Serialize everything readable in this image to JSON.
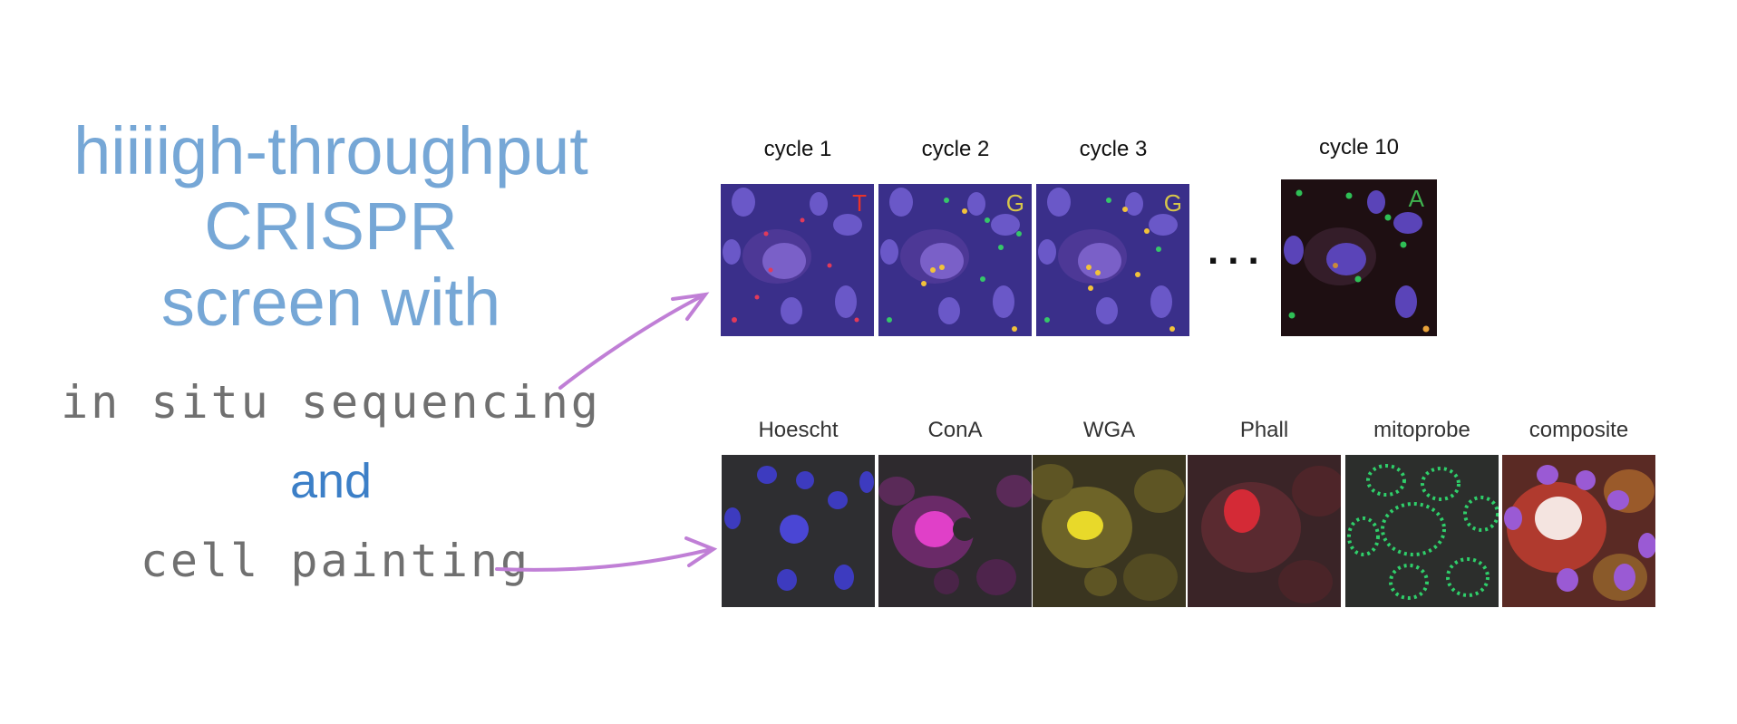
{
  "headline": {
    "line1": "hiiiigh-throughput",
    "line2": "CRISPR",
    "line3": "screen with"
  },
  "methods": {
    "sequencing": "in situ sequencing",
    "and": "and",
    "painting": "cell painting"
  },
  "sequencing_panel": {
    "ellipsis": "...",
    "cycles": [
      {
        "label": "cycle 1",
        "base": "T",
        "base_color": "#e8332a"
      },
      {
        "label": "cycle 2",
        "base": "G",
        "base_color": "#d7c64a"
      },
      {
        "label": "cycle 3",
        "base": "G",
        "base_color": "#d7c64a"
      },
      {
        "label": "cycle 10",
        "base": "A",
        "base_color": "#3fb34f"
      }
    ]
  },
  "painting_panel": {
    "channels": [
      {
        "label": "Hoescht"
      },
      {
        "label": "ConA"
      },
      {
        "label": "WGA"
      },
      {
        "label": "Phall"
      },
      {
        "label": "mitoprobe"
      },
      {
        "label": "composite"
      }
    ]
  },
  "colors": {
    "headline": "#76a7d6",
    "and": "#3c7fc7",
    "handwriting": "#707070",
    "arrow": "#c07fd6"
  }
}
